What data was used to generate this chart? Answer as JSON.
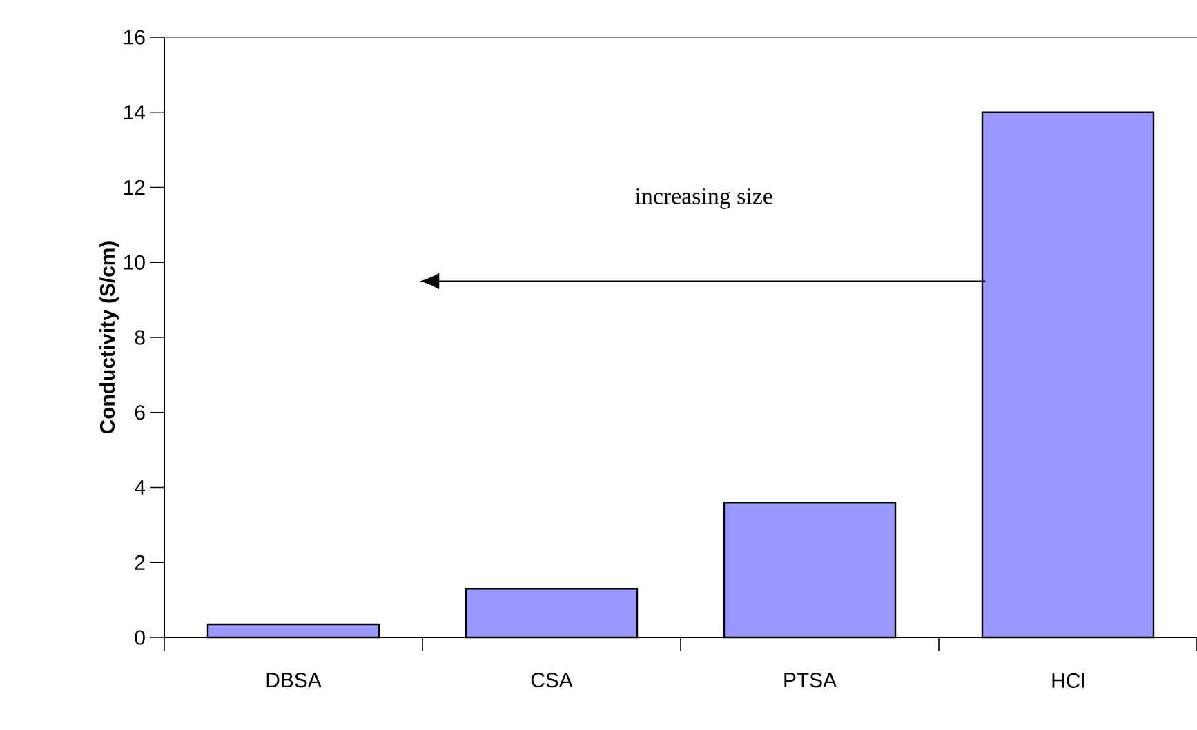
{
  "chart_data": {
    "type": "bar",
    "ylabel": "Conductivity (S/cm)",
    "categories": [
      "DBSA",
      "CSA",
      "PTSA",
      "HCl"
    ],
    "values": [
      0.35,
      1.3,
      3.6,
      14.0
    ],
    "color": "#9999ff",
    "ylim": [
      0,
      16
    ],
    "yticks": [
      0,
      2,
      4,
      6,
      8,
      10,
      12,
      14,
      16
    ],
    "annotations": [
      "increasing size"
    ],
    "grid": false
  }
}
